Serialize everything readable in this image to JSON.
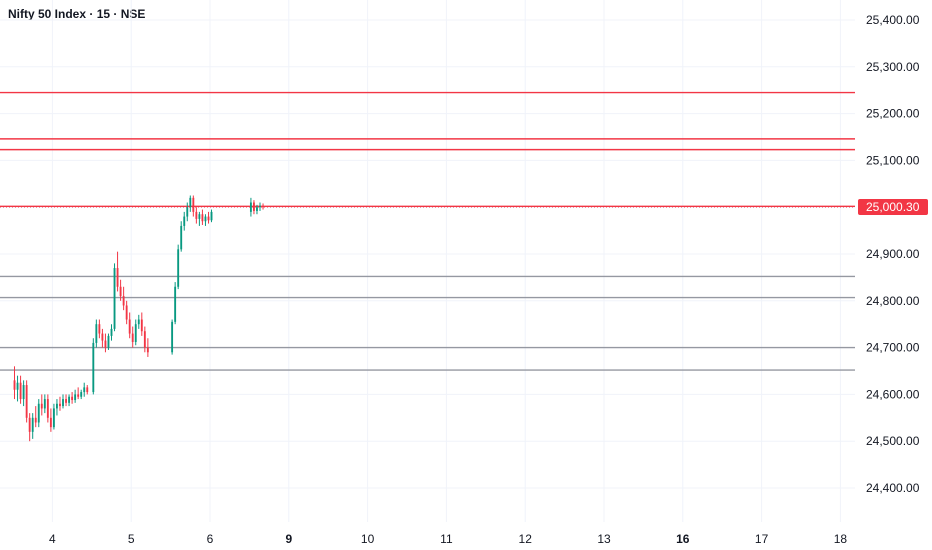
{
  "title": "Nifty 50 Index · 15 · NSE",
  "colors": {
    "up": "#089981",
    "down": "#f23645",
    "resistance": "#f23645",
    "support": "#9598a1",
    "grid": "#f0f3fa",
    "text": "#131722"
  },
  "chart_data": {
    "type": "candlestick",
    "title": "Nifty 50 Index · 15 · NSE",
    "xlabel": "",
    "ylabel": "",
    "ylim": [
      24350,
      25450
    ],
    "y_ticks": [
      "25,400.00",
      "25,300.00",
      "25,200.00",
      "25,100.00",
      "25,000.00",
      "24,900.00",
      "24,800.00",
      "24,700.00",
      "24,600.00",
      "24,500.00",
      "24,400.00"
    ],
    "y_tick_values": [
      25400,
      25300,
      25200,
      25100,
      25000,
      24900,
      24800,
      24700,
      24600,
      24500,
      24400
    ],
    "x_ticks": [
      {
        "day": 3.5,
        "label": "4",
        "bold": false
      },
      {
        "day": 4.5,
        "label": "5",
        "bold": false
      },
      {
        "day": 5.5,
        "label": "6",
        "bold": false
      },
      {
        "day": 6.5,
        "label": "9",
        "bold": true
      },
      {
        "day": 7.5,
        "label": "10",
        "bold": false
      },
      {
        "day": 8.5,
        "label": "11",
        "bold": false
      },
      {
        "day": 9.5,
        "label": "12",
        "bold": false
      },
      {
        "day": 10.5,
        "label": "13",
        "bold": false
      },
      {
        "day": 11.5,
        "label": "16",
        "bold": true
      },
      {
        "day": 12.5,
        "label": "17",
        "bold": false
      },
      {
        "day": 13.5,
        "label": "18",
        "bold": false
      }
    ],
    "last_price": 25000.3,
    "last_price_label": "25,000.30",
    "horizontal_levels": [
      {
        "value": 25245,
        "kind": "resistance"
      },
      {
        "value": 25146,
        "kind": "resistance"
      },
      {
        "value": 25123,
        "kind": "resistance"
      },
      {
        "value": 25002,
        "kind": "resistance"
      },
      {
        "value": 24852,
        "kind": "support"
      },
      {
        "value": 24807,
        "kind": "support"
      },
      {
        "value": 24700,
        "kind": "support"
      },
      {
        "value": 24652,
        "kind": "support"
      }
    ],
    "days": [
      {
        "x_start": 3.0,
        "candles": [
          {
            "o": 24630,
            "h": 24660,
            "l": 24590,
            "c": 24610
          },
          {
            "o": 24610,
            "h": 24640,
            "l": 24585,
            "c": 24625
          },
          {
            "o": 24625,
            "h": 24640,
            "l": 24580,
            "c": 24590
          },
          {
            "o": 24590,
            "h": 24630,
            "l": 24575,
            "c": 24620
          },
          {
            "o": 24620,
            "h": 24630,
            "l": 24540,
            "c": 24550
          },
          {
            "o": 24550,
            "h": 24560,
            "l": 24500,
            "c": 24520
          },
          {
            "o": 24520,
            "h": 24560,
            "l": 24505,
            "c": 24550
          },
          {
            "o": 24550,
            "h": 24575,
            "l": 24530,
            "c": 24540
          },
          {
            "o": 24540,
            "h": 24590,
            "l": 24530,
            "c": 24580
          },
          {
            "o": 24580,
            "h": 24600,
            "l": 24555,
            "c": 24570
          },
          {
            "o": 24570,
            "h": 24600,
            "l": 24560,
            "c": 24590
          },
          {
            "o": 24590,
            "h": 24600,
            "l": 24540,
            "c": 24550
          },
          {
            "o": 24550,
            "h": 24570,
            "l": 24520,
            "c": 24530
          },
          {
            "o": 24530,
            "h": 24580,
            "l": 24525,
            "c": 24570
          },
          {
            "o": 24570,
            "h": 24590,
            "l": 24555,
            "c": 24580
          },
          {
            "o": 24580,
            "h": 24595,
            "l": 24565,
            "c": 24575
          },
          {
            "o": 24575,
            "h": 24600,
            "l": 24570,
            "c": 24590
          },
          {
            "o": 24590,
            "h": 24600,
            "l": 24575,
            "c": 24582
          },
          {
            "o": 24582,
            "h": 24600,
            "l": 24575,
            "c": 24595
          },
          {
            "o": 24595,
            "h": 24605,
            "l": 24580,
            "c": 24588
          },
          {
            "o": 24588,
            "h": 24610,
            "l": 24582,
            "c": 24600
          },
          {
            "o": 24600,
            "h": 24615,
            "l": 24590,
            "c": 24595
          },
          {
            "o": 24595,
            "h": 24610,
            "l": 24590,
            "c": 24605
          },
          {
            "o": 24605,
            "h": 24625,
            "l": 24595,
            "c": 24615
          },
          {
            "o": 24615,
            "h": 24620,
            "l": 24600,
            "c": 24605
          }
        ]
      },
      {
        "x_start": 4.0,
        "candles": [
          {
            "o": 24605,
            "h": 24720,
            "l": 24600,
            "c": 24710
          },
          {
            "o": 24710,
            "h": 24760,
            "l": 24700,
            "c": 24750
          },
          {
            "o": 24750,
            "h": 24760,
            "l": 24720,
            "c": 24730
          },
          {
            "o": 24730,
            "h": 24740,
            "l": 24700,
            "c": 24715
          },
          {
            "o": 24715,
            "h": 24730,
            "l": 24690,
            "c": 24700
          },
          {
            "o": 24700,
            "h": 24730,
            "l": 24695,
            "c": 24725
          },
          {
            "o": 24725,
            "h": 24750,
            "l": 24715,
            "c": 24740
          },
          {
            "o": 24740,
            "h": 24880,
            "l": 24735,
            "c": 24870
          },
          {
            "o": 24870,
            "h": 24905,
            "l": 24820,
            "c": 24830
          },
          {
            "o": 24830,
            "h": 24845,
            "l": 24800,
            "c": 24810
          },
          {
            "o": 24810,
            "h": 24830,
            "l": 24780,
            "c": 24790
          },
          {
            "o": 24790,
            "h": 24800,
            "l": 24750,
            "c": 24760
          },
          {
            "o": 24760,
            "h": 24775,
            "l": 24720,
            "c": 24730
          },
          {
            "o": 24730,
            "h": 24745,
            "l": 24700,
            "c": 24712
          },
          {
            "o": 24712,
            "h": 24760,
            "l": 24705,
            "c": 24750
          },
          {
            "o": 24750,
            "h": 24770,
            "l": 24740,
            "c": 24760
          },
          {
            "o": 24760,
            "h": 24775,
            "l": 24725,
            "c": 24735
          },
          {
            "o": 24735,
            "h": 24745,
            "l": 24690,
            "c": 24700
          },
          {
            "o": 24700,
            "h": 24720,
            "l": 24680,
            "c": 24690
          }
        ]
      },
      {
        "x_start": 5.0,
        "candles": [
          {
            "o": 24690,
            "h": 24760,
            "l": 24685,
            "c": 24755
          },
          {
            "o": 24755,
            "h": 24840,
            "l": 24750,
            "c": 24830
          },
          {
            "o": 24830,
            "h": 24920,
            "l": 24825,
            "c": 24910
          },
          {
            "o": 24910,
            "h": 24970,
            "l": 24905,
            "c": 24960
          },
          {
            "o": 24960,
            "h": 24990,
            "l": 24950,
            "c": 24980
          },
          {
            "o": 24980,
            "h": 25010,
            "l": 24970,
            "c": 25000
          },
          {
            "o": 25000,
            "h": 25025,
            "l": 24990,
            "c": 25020
          },
          {
            "o": 25020,
            "h": 25025,
            "l": 24980,
            "c": 24990
          },
          {
            "o": 24990,
            "h": 25000,
            "l": 24965,
            "c": 24975
          },
          {
            "o": 24975,
            "h": 24990,
            "l": 24960,
            "c": 24985
          },
          {
            "o": 24985,
            "h": 24995,
            "l": 24962,
            "c": 24970
          },
          {
            "o": 24970,
            "h": 24985,
            "l": 24960,
            "c": 24980
          },
          {
            "o": 24980,
            "h": 24990,
            "l": 24965,
            "c": 24972
          },
          {
            "o": 24972,
            "h": 24995,
            "l": 24968,
            "c": 24990
          }
        ]
      },
      {
        "x_start": 6.0,
        "candles": [
          {
            "o": 24990,
            "h": 25020,
            "l": 24980,
            "c": 25010
          },
          {
            "o": 25010,
            "h": 25015,
            "l": 24985,
            "c": 24992
          },
          {
            "o": 24992,
            "h": 25005,
            "l": 24985,
            "c": 25000
          },
          {
            "o": 25000,
            "h": 25010,
            "l": 24992,
            "c": 25003
          },
          {
            "o": 25003,
            "h": 25008,
            "l": 24995,
            "c": 25000
          }
        ]
      }
    ]
  }
}
